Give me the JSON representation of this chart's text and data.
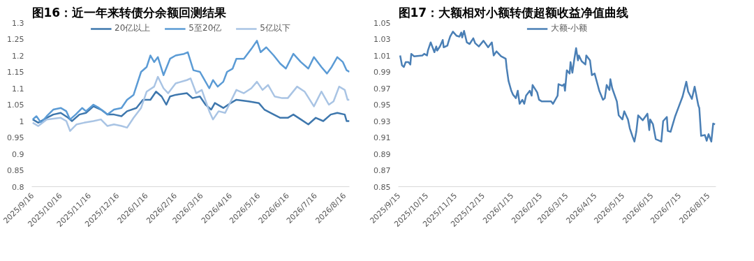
{
  "chart_data": [
    {
      "type": "line",
      "title": "图16：近一年来转债分余额回测结果",
      "legend": "top",
      "grid": false,
      "line_style": "solid",
      "marker": "none",
      "xlim": [
        "2025-09-15",
        "2026-08-21"
      ],
      "ylim": [
        0.8,
        1.3
      ],
      "yticks": [
        {
          "value": 0.8,
          "label": "0.8"
        },
        {
          "value": 0.85,
          "label": "0.85"
        },
        {
          "value": 0.9,
          "label": "0.9"
        },
        {
          "value": 0.95,
          "label": "0.95"
        },
        {
          "value": 1.0,
          "label": "1"
        },
        {
          "value": 1.05,
          "label": "1.05"
        },
        {
          "value": 1.1,
          "label": "1.1"
        },
        {
          "value": 1.15,
          "label": "1.15"
        },
        {
          "value": 1.2,
          "label": "1.2"
        },
        {
          "value": 1.25,
          "label": "1.25"
        },
        {
          "value": 1.3,
          "label": "1.3"
        }
      ],
      "xticks": [
        {
          "value": "2025-09-16",
          "label": "2025/9/16"
        },
        {
          "value": "2025-10-16",
          "label": "2025/10/16"
        },
        {
          "value": "2025-11-16",
          "label": "2025/11/16"
        },
        {
          "value": "2025-12-16",
          "label": "2025/12/16"
        },
        {
          "value": "2026-01-16",
          "label": "2026/1/16"
        },
        {
          "value": "2026-02-16",
          "label": "2026/2/16"
        },
        {
          "value": "2026-03-16",
          "label": "2026/3/16"
        },
        {
          "value": "2026-04-16",
          "label": "2026/4/16"
        },
        {
          "value": "2026-05-16",
          "label": "2026/5/16"
        },
        {
          "value": "2026-06-16",
          "label": "2026/6/16"
        },
        {
          "value": "2026-07-16",
          "label": "2026/7/16"
        },
        {
          "value": "2026-08-16",
          "label": "2026/8/16"
        }
      ],
      "series": [
        {
          "name": "20亿以上",
          "color": "#3e77ad",
          "x": [
            "2025-09-16",
            "2025-09-22",
            "2025-10-01",
            "2025-10-08",
            "2025-10-16",
            "2025-10-24",
            "2025-10-28",
            "2025-11-05",
            "2025-11-12",
            "2025-11-20",
            "2025-11-28",
            "2025-12-05",
            "2025-12-12",
            "2025-12-20",
            "2025-12-26",
            "2026-01-05",
            "2026-01-12",
            "2026-01-20",
            "2026-01-26",
            "2026-02-01",
            "2026-02-06",
            "2026-02-10",
            "2026-02-16",
            "2026-02-28",
            "2026-03-06",
            "2026-03-14",
            "2026-03-20",
            "2026-03-26",
            "2026-03-30",
            "2026-04-08",
            "2026-04-16",
            "2026-04-22",
            "2026-05-05",
            "2026-05-16",
            "2026-05-22",
            "2026-06-01",
            "2026-06-08",
            "2026-06-16",
            "2026-06-22",
            "2026-06-30",
            "2026-07-08",
            "2026-07-16",
            "2026-07-24",
            "2026-08-01",
            "2026-08-08",
            "2026-08-16",
            "2026-08-18",
            "2026-08-21"
          ],
          "values": [
            1.005,
            0.995,
            1.01,
            1.02,
            1.025,
            1.01,
            1.0,
            1.02,
            1.025,
            1.045,
            1.035,
            1.02,
            1.02,
            1.015,
            1.03,
            1.04,
            1.065,
            1.065,
            1.09,
            1.075,
            1.05,
            1.075,
            1.08,
            1.085,
            1.07,
            1.075,
            1.05,
            1.035,
            1.055,
            1.04,
            1.055,
            1.065,
            1.06,
            1.055,
            1.035,
            1.02,
            1.01,
            1.01,
            1.02,
            1.005,
            0.99,
            1.01,
            1.0,
            1.02,
            1.025,
            1.02,
            1.0,
            1.0
          ]
        },
        {
          "name": "5至20亿",
          "color": "#5b9bd5",
          "x": [
            "2025-09-16",
            "2025-09-20",
            "2025-09-25",
            "2025-10-01",
            "2025-10-08",
            "2025-10-16",
            "2025-10-22",
            "2025-10-26",
            "2025-11-01",
            "2025-11-08",
            "2025-11-12",
            "2025-11-20",
            "2025-11-26",
            "2025-12-01",
            "2025-12-05",
            "2025-12-12",
            "2025-12-20",
            "2025-12-26",
            "2026-01-02",
            "2026-01-10",
            "2026-01-16",
            "2026-01-20",
            "2026-01-24",
            "2026-01-28",
            "2026-02-03",
            "2026-02-10",
            "2026-02-16",
            "2026-02-25",
            "2026-03-01",
            "2026-03-07",
            "2026-03-14",
            "2026-03-18",
            "2026-03-24",
            "2026-03-28",
            "2026-04-02",
            "2026-04-08",
            "2026-04-12",
            "2026-04-18",
            "2026-04-22",
            "2026-04-30",
            "2026-05-08",
            "2026-05-14",
            "2026-05-18",
            "2026-05-24",
            "2026-06-01",
            "2026-06-08",
            "2026-06-14",
            "2026-06-22",
            "2026-06-30",
            "2026-07-08",
            "2026-07-14",
            "2026-07-22",
            "2026-07-28",
            "2026-08-02",
            "2026-08-08",
            "2026-08-14",
            "2026-08-18",
            "2026-08-21"
          ],
          "values": [
            1.005,
            1.015,
            0.995,
            1.015,
            1.035,
            1.04,
            1.03,
            1.005,
            1.02,
            1.04,
            1.03,
            1.05,
            1.04,
            1.03,
            1.02,
            1.035,
            1.04,
            1.065,
            1.08,
            1.15,
            1.165,
            1.2,
            1.18,
            1.195,
            1.14,
            1.19,
            1.2,
            1.205,
            1.21,
            1.155,
            1.15,
            1.13,
            1.1,
            1.125,
            1.105,
            1.12,
            1.15,
            1.16,
            1.19,
            1.19,
            1.22,
            1.245,
            1.21,
            1.225,
            1.2,
            1.175,
            1.16,
            1.205,
            1.18,
            1.16,
            1.195,
            1.165,
            1.145,
            1.165,
            1.195,
            1.18,
            1.155,
            1.15
          ]
        },
        {
          "name": "5亿以下",
          "color": "#a9c4e4",
          "x": [
            "2025-09-16",
            "2025-09-22",
            "2025-10-01",
            "2025-10-16",
            "2025-10-22",
            "2025-10-26",
            "2025-11-02",
            "2025-11-10",
            "2025-11-20",
            "2025-11-28",
            "2025-12-05",
            "2025-12-12",
            "2025-12-20",
            "2025-12-26",
            "2026-01-02",
            "2026-01-10",
            "2026-01-16",
            "2026-01-24",
            "2026-01-28",
            "2026-02-03",
            "2026-02-08",
            "2026-02-16",
            "2026-02-28",
            "2026-03-04",
            "2026-03-10",
            "2026-03-16",
            "2026-03-24",
            "2026-03-28",
            "2026-04-03",
            "2026-04-10",
            "2026-04-16",
            "2026-04-22",
            "2026-04-30",
            "2026-05-08",
            "2026-05-14",
            "2026-05-20",
            "2026-05-26",
            "2026-06-02",
            "2026-06-10",
            "2026-06-16",
            "2026-06-26",
            "2026-07-04",
            "2026-07-14",
            "2026-07-22",
            "2026-07-30",
            "2026-08-04",
            "2026-08-10",
            "2026-08-16",
            "2026-08-19",
            "2026-08-21"
          ],
          "values": [
            0.995,
            0.985,
            1.005,
            1.01,
            1.0,
            0.97,
            0.99,
            0.995,
            1.0,
            1.005,
            0.985,
            0.99,
            0.985,
            0.98,
            1.01,
            1.04,
            1.09,
            1.105,
            1.135,
            1.1,
            1.085,
            1.115,
            1.125,
            1.13,
            1.085,
            1.095,
            1.03,
            1.005,
            1.03,
            1.025,
            1.06,
            1.095,
            1.085,
            1.1,
            1.12,
            1.095,
            1.11,
            1.075,
            1.07,
            1.07,
            1.105,
            1.09,
            1.045,
            1.09,
            1.05,
            1.06,
            1.105,
            1.095,
            1.065,
            1.065
          ]
        }
      ]
    },
    {
      "type": "line",
      "title": "图17：大额相对小额转债超额收益净值曲线",
      "legend": "top",
      "grid": false,
      "line_style": "solid",
      "marker": "none",
      "xlim": [
        "2025-09-14",
        "2026-08-23"
      ],
      "ylim": [
        0.85,
        1.05
      ],
      "yticks": [
        {
          "value": 0.85,
          "label": "0.85"
        },
        {
          "value": 0.87,
          "label": "0.87"
        },
        {
          "value": 0.89,
          "label": "0.89"
        },
        {
          "value": 0.91,
          "label": "0.91"
        },
        {
          "value": 0.93,
          "label": "0.93"
        },
        {
          "value": 0.95,
          "label": "0.95"
        },
        {
          "value": 0.97,
          "label": "0.97"
        },
        {
          "value": 0.99,
          "label": "0.99"
        },
        {
          "value": 1.01,
          "label": "1.01"
        },
        {
          "value": 1.03,
          "label": "1.03"
        },
        {
          "value": 1.05,
          "label": "1.05"
        }
      ],
      "xticks": [
        {
          "value": "2025-09-15",
          "label": "2025/9/15"
        },
        {
          "value": "2025-10-15",
          "label": "2025/10/15"
        },
        {
          "value": "2025-11-15",
          "label": "2025/11/15"
        },
        {
          "value": "2025-12-15",
          "label": "2025/12/15"
        },
        {
          "value": "2026-01-15",
          "label": "2026/1/15"
        },
        {
          "value": "2026-02-15",
          "label": "2026/2/15"
        },
        {
          "value": "2026-03-15",
          "label": "2026/3/15"
        },
        {
          "value": "2026-04-15",
          "label": "2026/4/15"
        },
        {
          "value": "2026-05-15",
          "label": "2026/5/15"
        },
        {
          "value": "2026-06-15",
          "label": "2026/6/15"
        },
        {
          "value": "2026-07-15",
          "label": "2026/7/15"
        },
        {
          "value": "2026-08-15",
          "label": "2026/8/15"
        }
      ],
      "series": [
        {
          "name": "大额-小额",
          "color": "#4a7fb5",
          "x": [
            "2025-09-16",
            "2025-09-18",
            "2025-09-20",
            "2025-09-22",
            "2025-09-25",
            "2025-09-27",
            "2025-09-28",
            "2025-10-01",
            "2025-10-10",
            "2025-10-12",
            "2025-10-15",
            "2025-10-16",
            "2025-10-19",
            "2025-10-21",
            "2025-10-23",
            "2025-10-25",
            "2025-10-26",
            "2025-10-29",
            "2025-11-01",
            "2025-11-02",
            "2025-11-06",
            "2025-11-07",
            "2025-11-09",
            "2025-11-12",
            "2025-11-16",
            "2025-11-19",
            "2025-11-21",
            "2025-11-22",
            "2025-11-24",
            "2025-11-27",
            "2025-11-30",
            "2025-12-04",
            "2025-12-06",
            "2025-12-10",
            "2025-12-15",
            "2025-12-20",
            "2025-12-24",
            "2025-12-26",
            "2025-12-29",
            "2026-01-03",
            "2026-01-08",
            "2026-01-09",
            "2026-01-11",
            "2026-01-14",
            "2026-01-16",
            "2026-01-19",
            "2026-01-21",
            "2026-01-23",
            "2026-01-26",
            "2026-01-28",
            "2026-01-30",
            "2026-02-03",
            "2026-02-05",
            "2026-02-06",
            "2026-02-11",
            "2026-02-13",
            "2026-02-16",
            "2026-02-26",
            "2026-02-28",
            "2026-03-05",
            "2026-03-06",
            "2026-03-10",
            "2026-03-12",
            "2026-03-13",
            "2026-03-15",
            "2026-03-18",
            "2026-03-19",
            "2026-03-21",
            "2026-03-23",
            "2026-03-25",
            "2026-03-27",
            "2026-03-28",
            "2026-03-31",
            "2026-04-04",
            "2026-04-05",
            "2026-04-09",
            "2026-04-11",
            "2026-04-14",
            "2026-04-19",
            "2026-04-23",
            "2026-04-25",
            "2026-04-27",
            "2026-04-30",
            "2026-05-01",
            "2026-05-03",
            "2026-05-08",
            "2026-05-10",
            "2026-05-14",
            "2026-05-16",
            "2026-05-20",
            "2026-05-22",
            "2026-05-25",
            "2026-05-27",
            "2026-05-29",
            "2026-05-31",
            "2026-06-05",
            "2026-06-10",
            "2026-06-12",
            "2026-06-13",
            "2026-06-16",
            "2026-06-19",
            "2026-06-25",
            "2026-06-27",
            "2026-07-01",
            "2026-07-02",
            "2026-07-05",
            "2026-07-10",
            "2026-07-13",
            "2026-07-18",
            "2026-07-22",
            "2026-07-24",
            "2026-07-28",
            "2026-07-31",
            "2026-08-04",
            "2026-08-05",
            "2026-08-07",
            "2026-08-11",
            "2026-08-13",
            "2026-08-15",
            "2026-08-18",
            "2026-08-20",
            "2026-08-22"
          ],
          "values": [
            1.01,
            0.998,
            0.996,
            1.002,
            1.002,
            0.999,
            1.012,
            1.009,
            1.01,
            1.012,
            1.01,
            1.016,
            1.026,
            1.02,
            1.014,
            1.021,
            1.016,
            1.021,
            1.029,
            1.02,
            1.022,
            1.026,
            1.033,
            1.039,
            1.034,
            1.033,
            1.038,
            1.032,
            1.04,
            1.026,
            1.024,
            1.031,
            1.025,
            1.021,
            1.028,
            1.02,
            1.026,
            1.01,
            1.015,
            1.009,
            1.006,
            0.995,
            0.979,
            0.967,
            0.962,
            0.958,
            0.967,
            0.951,
            0.956,
            0.951,
            0.961,
            0.967,
            0.961,
            0.974,
            0.965,
            0.956,
            0.954,
            0.954,
            0.951,
            0.961,
            0.975,
            0.973,
            0.975,
            0.967,
            0.992,
            0.988,
            1.002,
            0.989,
            1.005,
            1.019,
            1.004,
            1.01,
            1.003,
            0.999,
            1.01,
            1.004,
            0.986,
            0.988,
            0.967,
            0.956,
            0.958,
            0.974,
            0.968,
            0.981,
            0.97,
            0.954,
            0.937,
            0.932,
            0.942,
            0.932,
            0.921,
            0.911,
            0.905,
            0.917,
            0.937,
            0.931,
            0.939,
            0.919,
            0.932,
            0.926,
            0.908,
            0.905,
            0.93,
            0.935,
            0.918,
            0.917,
            0.936,
            0.945,
            0.96,
            0.978,
            0.966,
            0.957,
            0.972,
            0.949,
            0.946,
            0.912,
            0.913,
            0.906,
            0.914,
            0.905,
            0.927,
            0.926
          ]
        }
      ]
    }
  ]
}
